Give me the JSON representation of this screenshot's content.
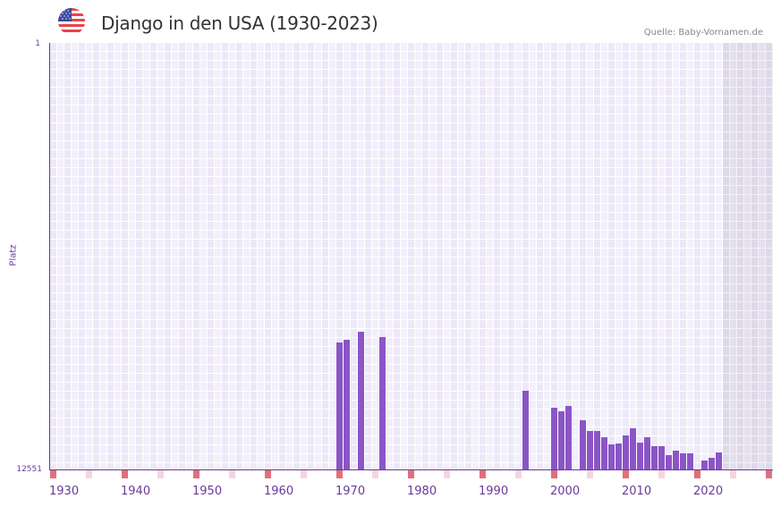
{
  "header": {
    "title": "Django in den USA (1930-2023)",
    "source": "Quelle: Baby-Vornamen.de",
    "flag_icon": "us-flag-icon"
  },
  "axes": {
    "y_top_label": "1",
    "y_bottom_label": "12551",
    "y_title": "Platz",
    "x_labels": [
      "1930",
      "1940",
      "1950",
      "1960",
      "1970",
      "1980",
      "1990",
      "2000",
      "2010",
      "2020"
    ]
  },
  "colors": {
    "bar": "#8b55c6",
    "axis": "#6a3a9a",
    "decade_marker": "#e07078",
    "half_decade_marker": "#f5d5dd"
  },
  "chart_data": {
    "type": "bar",
    "title": "Django in den USA (1930-2023)",
    "xlabel": "",
    "ylabel": "Platz",
    "ylim": [
      12551,
      1
    ],
    "y_inverted": true,
    "x_range": [
      1930,
      2030
    ],
    "shaded_future_range": [
      2024,
      2030
    ],
    "grid": true,
    "legend": null,
    "x_tick_labels": [
      "1930",
      "1940",
      "1950",
      "1960",
      "1970",
      "1980",
      "1990",
      "2000",
      "2010",
      "2020"
    ],
    "categories": [
      1970,
      1971,
      1973,
      1976,
      1996,
      2000,
      2001,
      2002,
      2004,
      2005,
      2006,
      2007,
      2008,
      2009,
      2010,
      2011,
      2012,
      2013,
      2014,
      2015,
      2016,
      2017,
      2018,
      2019,
      2021,
      2022,
      2023
    ],
    "values": [
      8815,
      8736,
      8499,
      8657,
      10236,
      10736,
      10841,
      10683,
      11104,
      11420,
      11420,
      11604,
      11814,
      11788,
      11551,
      11340,
      11762,
      11604,
      11867,
      11867,
      12130,
      11998,
      12077,
      12077,
      12288,
      12209,
      12051
    ]
  }
}
